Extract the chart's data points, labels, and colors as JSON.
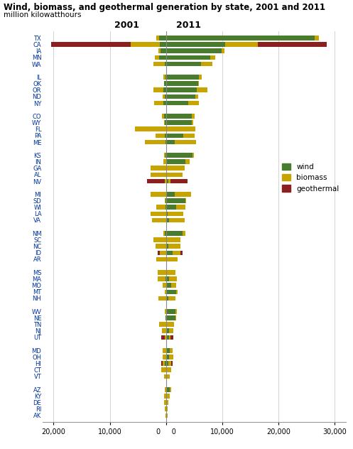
{
  "title": "Wind, biomass, and geothermal generation by state, 2001 and 2011",
  "subtitle": "million kilowatthours",
  "colors": {
    "wind": "#4a7c2f",
    "biomass": "#c8a400",
    "geothermal": "#8b2020"
  },
  "state_groups": [
    [
      "TX",
      "CA",
      "IA",
      "MN",
      "WA"
    ],
    [
      "IL",
      "OK",
      "OR",
      "ND",
      "NY"
    ],
    [
      "CO",
      "WY",
      "FL",
      "PA",
      "ME"
    ],
    [
      "KS",
      "IN",
      "GA",
      "AL",
      "NV"
    ],
    [
      "MI",
      "SD",
      "WI",
      "LA",
      "VA"
    ],
    [
      "NM",
      "SC",
      "NC",
      "ID",
      "AR"
    ],
    [
      "MS",
      "MA",
      "MO",
      "MT",
      "NH"
    ],
    [
      "WV",
      "NE",
      "TN",
      "NJ",
      "UT"
    ],
    [
      "MD",
      "OH",
      "HI",
      "CT",
      "VT"
    ],
    [
      "AZ",
      "KY",
      "DE",
      "RI",
      "AK"
    ]
  ],
  "data_2011": {
    "TX": {
      "wind": 26469,
      "biomass": 750,
      "geothermal": 0
    },
    "CA": {
      "wind": 10537,
      "biomass": 5800,
      "geothermal": 12182
    },
    "IA": {
      "wind": 9908,
      "biomass": 500,
      "geothermal": 0
    },
    "MN": {
      "wind": 7800,
      "biomass": 900,
      "geothermal": 0
    },
    "WA": {
      "wind": 6200,
      "biomass": 2100,
      "geothermal": 0
    },
    "IL": {
      "wind": 5850,
      "biomass": 550,
      "geothermal": 0
    },
    "OK": {
      "wind": 5700,
      "biomass": 200,
      "geothermal": 0
    },
    "OR": {
      "wind": 5400,
      "biomass": 1900,
      "geothermal": 0
    },
    "ND": {
      "wind": 5200,
      "biomass": 500,
      "geothermal": 0
    },
    "NY": {
      "wind": 4000,
      "biomass": 1900,
      "geothermal": 0
    },
    "CO": {
      "wind": 4600,
      "biomass": 500,
      "geothermal": 0
    },
    "WY": {
      "wind": 4600,
      "biomass": 250,
      "geothermal": 0
    },
    "FL": {
      "wind": 0,
      "biomass": 5200,
      "geothermal": 0
    },
    "PA": {
      "wind": 3100,
      "biomass": 2000,
      "geothermal": 0
    },
    "ME": {
      "wind": 1600,
      "biomass": 3700,
      "geothermal": 0
    },
    "KS": {
      "wind": 4700,
      "biomass": 300,
      "geothermal": 0
    },
    "IN": {
      "wind": 3500,
      "biomass": 700,
      "geothermal": 0
    },
    "GA": {
      "wind": 0,
      "biomass": 3300,
      "geothermal": 0
    },
    "AL": {
      "wind": 0,
      "biomass": 2900,
      "geothermal": 0
    },
    "NV": {
      "wind": 400,
      "biomass": 400,
      "geothermal": 3000
    },
    "MI": {
      "wind": 1500,
      "biomass": 2900,
      "geothermal": 0
    },
    "SD": {
      "wind": 3400,
      "biomass": 200,
      "geothermal": 0
    },
    "WI": {
      "wind": 1800,
      "biomass": 1700,
      "geothermal": 0
    },
    "LA": {
      "wind": 300,
      "biomass": 2800,
      "geothermal": 0
    },
    "VA": {
      "wind": 500,
      "biomass": 2800,
      "geothermal": 0
    },
    "NM": {
      "wind": 2900,
      "biomass": 500,
      "geothermal": 0
    },
    "SC": {
      "wind": 0,
      "biomass": 2500,
      "geothermal": 0
    },
    "NC": {
      "wind": 400,
      "biomass": 2200,
      "geothermal": 0
    },
    "ID": {
      "wind": 1200,
      "biomass": 1400,
      "geothermal": 350
    },
    "AR": {
      "wind": 0,
      "biomass": 2000,
      "geothermal": 0
    },
    "MS": {
      "wind": 0,
      "biomass": 1700,
      "geothermal": 0
    },
    "MA": {
      "wind": 500,
      "biomass": 1400,
      "geothermal": 0
    },
    "MO": {
      "wind": 900,
      "biomass": 850,
      "geothermal": 0
    },
    "MT": {
      "wind": 1800,
      "biomass": 200,
      "geothermal": 0
    },
    "NH": {
      "wind": 400,
      "biomass": 1300,
      "geothermal": 0
    },
    "WV": {
      "wind": 1700,
      "biomass": 200,
      "geothermal": 0
    },
    "NE": {
      "wind": 1700,
      "biomass": 100,
      "geothermal": 0
    },
    "TN": {
      "wind": 0,
      "biomass": 1400,
      "geothermal": 0
    },
    "NJ": {
      "wind": 500,
      "biomass": 750,
      "geothermal": 0
    },
    "UT": {
      "wind": 500,
      "biomass": 250,
      "geothermal": 500
    },
    "MD": {
      "wind": 600,
      "biomass": 600,
      "geothermal": 0
    },
    "OH": {
      "wind": 500,
      "biomass": 750,
      "geothermal": 0
    },
    "HI": {
      "wind": 400,
      "biomass": 500,
      "geothermal": 250
    },
    "CT": {
      "wind": 0,
      "biomass": 850,
      "geothermal": 0
    },
    "VT": {
      "wind": 200,
      "biomass": 450,
      "geothermal": 0
    },
    "AZ": {
      "wind": 600,
      "biomass": 250,
      "geothermal": 0
    },
    "KY": {
      "wind": 0,
      "biomass": 650,
      "geothermal": 0
    },
    "DE": {
      "wind": 0,
      "biomass": 400,
      "geothermal": 0
    },
    "RI": {
      "wind": 0,
      "biomass": 250,
      "geothermal": 0
    },
    "AK": {
      "wind": 100,
      "biomass": 200,
      "geothermal": 0
    }
  },
  "data_2001": {
    "TX": {
      "wind": 1200,
      "biomass": 500,
      "geothermal": 0
    },
    "CA": {
      "wind": 1100,
      "biomass": 5200,
      "geothermal": 14200
    },
    "IA": {
      "wind": 1000,
      "biomass": 400,
      "geothermal": 0
    },
    "MN": {
      "wind": 1200,
      "biomass": 800,
      "geothermal": 0
    },
    "WA": {
      "wind": 200,
      "biomass": 2000,
      "geothermal": 0
    },
    "IL": {
      "wind": 50,
      "biomass": 400,
      "geothermal": 0
    },
    "OK": {
      "wind": 300,
      "biomass": 100,
      "geothermal": 0
    },
    "OR": {
      "wind": 500,
      "biomass": 1700,
      "geothermal": 0
    },
    "ND": {
      "wind": 200,
      "biomass": 400,
      "geothermal": 0
    },
    "NY": {
      "wind": 500,
      "biomass": 1600,
      "geothermal": 0
    },
    "CO": {
      "wind": 400,
      "biomass": 300,
      "geothermal": 0
    },
    "WY": {
      "wind": 200,
      "biomass": 200,
      "geothermal": 0
    },
    "FL": {
      "wind": 0,
      "biomass": 5500,
      "geothermal": 0
    },
    "PA": {
      "wind": 200,
      "biomass": 1700,
      "geothermal": 0
    },
    "ME": {
      "wind": 100,
      "biomass": 3600,
      "geothermal": 0
    },
    "KS": {
      "wind": 100,
      "biomass": 200,
      "geothermal": 0
    },
    "IN": {
      "wind": 0,
      "biomass": 500,
      "geothermal": 0
    },
    "GA": {
      "wind": 0,
      "biomass": 2800,
      "geothermal": 0
    },
    "AL": {
      "wind": 0,
      "biomass": 2700,
      "geothermal": 0
    },
    "NV": {
      "wind": 0,
      "biomass": 200,
      "geothermal": 3200
    },
    "MI": {
      "wind": 0,
      "biomass": 2800,
      "geothermal": 0
    },
    "SD": {
      "wind": 100,
      "biomass": 100,
      "geothermal": 0
    },
    "WI": {
      "wind": 100,
      "biomass": 1700,
      "geothermal": 0
    },
    "LA": {
      "wind": 0,
      "biomass": 2700,
      "geothermal": 0
    },
    "VA": {
      "wind": 0,
      "biomass": 2500,
      "geothermal": 0
    },
    "NM": {
      "wind": 200,
      "biomass": 300,
      "geothermal": 0
    },
    "SC": {
      "wind": 0,
      "biomass": 2200,
      "geothermal": 0
    },
    "NC": {
      "wind": 0,
      "biomass": 1900,
      "geothermal": 0
    },
    "ID": {
      "wind": 0,
      "biomass": 1100,
      "geothermal": 400
    },
    "AR": {
      "wind": 0,
      "biomass": 1700,
      "geothermal": 0
    },
    "MS": {
      "wind": 0,
      "biomass": 1500,
      "geothermal": 0
    },
    "MA": {
      "wind": 100,
      "biomass": 1400,
      "geothermal": 0
    },
    "MO": {
      "wind": 0,
      "biomass": 600,
      "geothermal": 0
    },
    "MT": {
      "wind": 0,
      "biomass": 200,
      "geothermal": 0
    },
    "NH": {
      "wind": 0,
      "biomass": 1300,
      "geothermal": 0
    },
    "WV": {
      "wind": 0,
      "biomass": 200,
      "geothermal": 0
    },
    "NE": {
      "wind": 50,
      "biomass": 100,
      "geothermal": 0
    },
    "TN": {
      "wind": 0,
      "biomass": 1200,
      "geothermal": 0
    },
    "NJ": {
      "wind": 0,
      "biomass": 700,
      "geothermal": 0
    },
    "UT": {
      "wind": 0,
      "biomass": 200,
      "geothermal": 600
    },
    "MD": {
      "wind": 0,
      "biomass": 600,
      "geothermal": 0
    },
    "OH": {
      "wind": 0,
      "biomass": 600,
      "geothermal": 0
    },
    "HI": {
      "wind": 200,
      "biomass": 450,
      "geothermal": 250
    },
    "CT": {
      "wind": 0,
      "biomass": 800,
      "geothermal": 0
    },
    "VT": {
      "wind": 0,
      "biomass": 350,
      "geothermal": 0
    },
    "AZ": {
      "wind": 0,
      "biomass": 200,
      "geothermal": 0
    },
    "KY": {
      "wind": 0,
      "biomass": 400,
      "geothermal": 0
    },
    "DE": {
      "wind": 0,
      "biomass": 300,
      "geothermal": 0
    },
    "RI": {
      "wind": 0,
      "biomass": 200,
      "geothermal": 0
    },
    "AK": {
      "wind": 0,
      "biomass": 150,
      "geothermal": 0
    }
  }
}
